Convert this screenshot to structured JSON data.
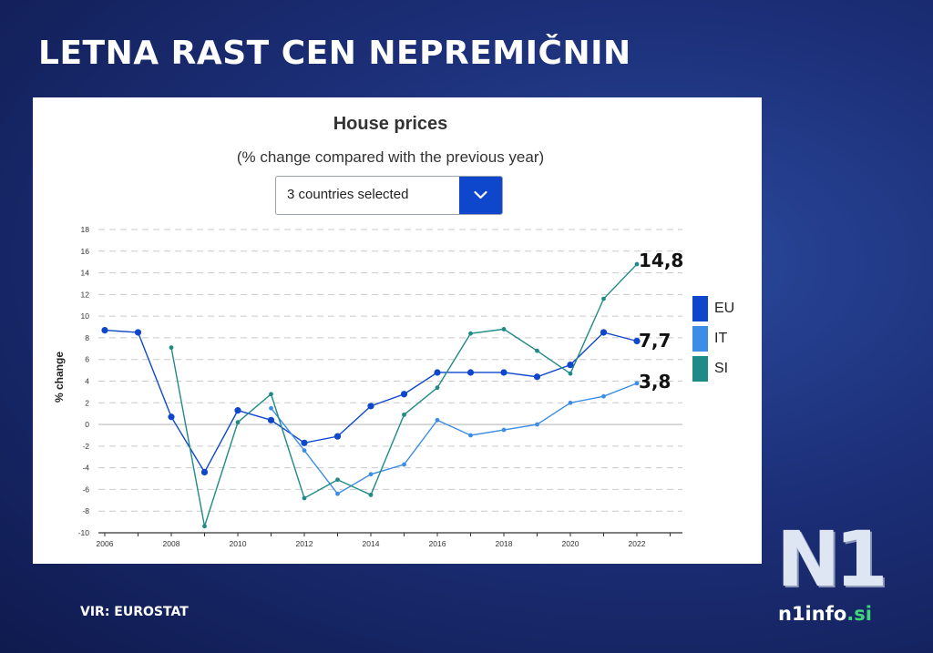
{
  "page": {
    "headline": "LETNA RAST CEN NEPREMIČNIN",
    "source": "VIR: EUROSTAT"
  },
  "logo": {
    "mark": "N1",
    "site": "n1info",
    "tld": ".si"
  },
  "dropdown": {
    "label": "3 countries selected",
    "icon": "chevron-down-icon"
  },
  "chart_data": {
    "type": "line",
    "title": "House prices",
    "subtitle": "(% change compared with the previous year)",
    "xlabel": "",
    "ylabel": "% change",
    "ylim": [
      -10,
      18
    ],
    "yticks": [
      18,
      16,
      14,
      12,
      10,
      8,
      6,
      4,
      2,
      0,
      -2,
      -4,
      -6,
      -8,
      -10
    ],
    "ytick_labels": [
      "18",
      "16",
      "14",
      "12",
      "10",
      "8",
      "6",
      "4",
      "2",
      "0",
      "-2",
      "-4",
      "-6",
      "-8",
      "-10"
    ],
    "xlim": [
      2006,
      2023
    ],
    "xticks": [
      2006,
      2008,
      2010,
      2012,
      2014,
      2016,
      2018,
      2020,
      2022
    ],
    "xtick_labels": [
      "2006",
      "2008",
      "2010",
      "2012",
      "2014",
      "2016",
      "2018",
      "2020",
      "2022"
    ],
    "grid": true,
    "legend_position": "right",
    "series": [
      {
        "name": "EU",
        "color": "#0e47cb",
        "x": [
          2006,
          2007,
          2008,
          2009,
          2010,
          2011,
          2012,
          2013,
          2014,
          2015,
          2016,
          2017,
          2018,
          2019,
          2020,
          2021,
          2022
        ],
        "values": [
          8.7,
          8.5,
          0.7,
          -4.4,
          1.3,
          0.4,
          -1.7,
          -1.1,
          1.7,
          2.8,
          4.8,
          4.8,
          4.8,
          4.4,
          5.5,
          8.5,
          7.7
        ],
        "end_label": "7,7"
      },
      {
        "name": "IT",
        "color": "#3b8de6",
        "x": [
          2011,
          2012,
          2013,
          2014,
          2015,
          2016,
          2017,
          2018,
          2019,
          2020,
          2021,
          2022
        ],
        "values": [
          1.5,
          -2.4,
          -6.4,
          -4.6,
          -3.7,
          0.4,
          -1.0,
          -0.5,
          0.0,
          2.0,
          2.6,
          3.8
        ],
        "end_label": "3,8"
      },
      {
        "name": "SI",
        "color": "#208a86",
        "x": [
          2008,
          2009,
          2010,
          2011,
          2012,
          2013,
          2014,
          2015,
          2016,
          2017,
          2018,
          2019,
          2020,
          2021,
          2022
        ],
        "values": [
          7.1,
          -9.4,
          0.2,
          2.8,
          -6.8,
          -5.1,
          -6.5,
          0.9,
          3.4,
          8.4,
          8.8,
          6.8,
          4.7,
          11.6,
          14.8
        ],
        "end_label": "14,8"
      }
    ]
  }
}
